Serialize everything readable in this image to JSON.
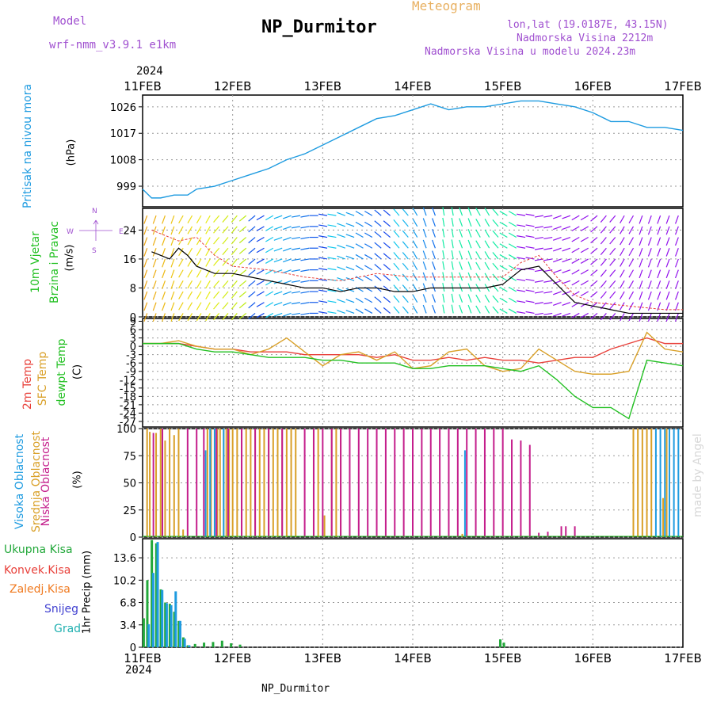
{
  "header": {
    "model_label": "Model",
    "model_name": "wrf-nmm_v3.9.1  e1km",
    "station": "NP_Durmitor",
    "meteogram_label": "Meteogram",
    "lonlat": "lon,lat (19.0187E, 43.15N)",
    "altitude": "Nadmorska Visina 2212m",
    "model_altitude": "Nadmorska Visina u modelu 2024.23m",
    "footer_station": "NP_Durmitor",
    "credit": "made by Angel",
    "year": "2024"
  },
  "colors": {
    "pressure": "#1e9be0",
    "temp2m": "#e8403a",
    "sfc": "#d9a028",
    "dewpt": "#22c022",
    "high_cloud": "#1e9be0",
    "mid_cloud": "#d9a028",
    "low_cloud": "#c41e8c",
    "precip_total": "#22a83a",
    "precip_conv": "#e8403a",
    "precip_frozen": "#f07a20",
    "snow": "#4040d0",
    "graupel": "#20b0b0",
    "wind_label": "#22c022",
    "wind_dir": "#a050d0"
  },
  "chart_data": [
    {
      "type": "line",
      "name": "pressure",
      "ylabel": [
        "Pritisak na nivou mora",
        "(hPa)"
      ],
      "x_range_days": [
        11,
        17
      ],
      "xticks": [
        "11FEB",
        "12FEB",
        "13FEB",
        "14FEB",
        "15FEB",
        "16FEB",
        "17FEB"
      ],
      "yticks": [
        999,
        1008,
        1017,
        1026
      ],
      "ylim": [
        992,
        1030
      ],
      "series": [
        {
          "x": [
            11.0,
            11.1,
            11.2,
            11.35,
            11.5,
            11.6,
            11.8,
            12.0,
            12.2,
            12.4,
            12.6,
            12.8,
            13.0,
            13.2,
            13.4,
            13.6,
            13.8,
            14.0,
            14.2,
            14.4,
            14.6,
            14.8,
            15.0,
            15.2,
            15.4,
            15.6,
            15.8,
            16.0,
            16.2,
            16.4,
            16.6,
            16.8,
            17.0
          ],
          "y": [
            998,
            995,
            995,
            996,
            996,
            998,
            999,
            1001,
            1003,
            1005,
            1008,
            1010,
            1013,
            1016,
            1019,
            1022,
            1023,
            1025,
            1027,
            1025,
            1026,
            1026,
            1027,
            1028,
            1028,
            1027,
            1026,
            1024,
            1021,
            1021,
            1019,
            1019,
            1018
          ]
        }
      ]
    },
    {
      "type": "line",
      "name": "wind",
      "ylabel": [
        "10m Vjetar",
        "Brzina i Pravac",
        "(m/s)"
      ],
      "direction_legend": {
        "north": "N",
        "west": "W",
        "east": "E",
        "south": "S"
      },
      "x_range_days": [
        11,
        17
      ],
      "yticks": [
        0,
        8,
        16,
        24
      ],
      "ylim": [
        0,
        30
      ],
      "series": [
        {
          "name": "speed",
          "x": [
            11.1,
            11.2,
            11.3,
            11.4,
            11.5,
            11.6,
            11.8,
            12.0,
            12.2,
            12.4,
            12.6,
            12.8,
            13.0,
            13.2,
            13.4,
            13.6,
            13.8,
            14.0,
            14.2,
            14.4,
            14.6,
            14.8,
            15.0,
            15.2,
            15.4,
            15.6,
            15.8,
            16.0,
            16.2,
            16.4,
            16.6,
            16.8,
            17.0
          ],
          "y": [
            18,
            17,
            16,
            19,
            17,
            14,
            12,
            12,
            11,
            10,
            9,
            8,
            8,
            7,
            8,
            8,
            7,
            7,
            8,
            8,
            8,
            8,
            9,
            13,
            14,
            9,
            4,
            3,
            2,
            1,
            1,
            1,
            1
          ]
        }
      ],
      "gust": {
        "x": [
          11.1,
          11.2,
          11.4,
          11.6,
          11.8,
          12.0,
          12.4,
          12.8,
          13.2,
          13.6,
          14.0,
          14.4,
          14.8,
          15.0,
          15.2,
          15.4,
          15.6,
          15.8,
          16.0,
          16.4,
          16.8,
          17.0
        ],
        "y": [
          24,
          23,
          21,
          22,
          17,
          14,
          13,
          11,
          10,
          12,
          11,
          11,
          11,
          11,
          15,
          17,
          11,
          6,
          4,
          3,
          2,
          2
        ]
      },
      "direction_deg": [
        200,
        200,
        210,
        210,
        220,
        220,
        230,
        240,
        250,
        260,
        270,
        280,
        290,
        300,
        310,
        320,
        330,
        340,
        350,
        340,
        330,
        320,
        300,
        280,
        260,
        250,
        240,
        230,
        220,
        210,
        200,
        200,
        200
      ]
    },
    {
      "type": "line",
      "name": "temperature",
      "ylabel": [
        "2m Temp",
        "SFC Temp",
        "dewpt Temp",
        "(C)"
      ],
      "x_range_days": [
        11,
        17
      ],
      "yticks": [
        9,
        6,
        3,
        0,
        -3,
        -6,
        -9,
        -12,
        -15,
        -18,
        -21,
        -24,
        -27
      ],
      "ylim": [
        -29,
        10
      ],
      "series": [
        {
          "name": "2m Temp",
          "x": [
            11.0,
            11.2,
            11.4,
            11.6,
            11.8,
            12.0,
            12.2,
            12.4,
            12.6,
            12.8,
            13.0,
            13.2,
            13.4,
            13.6,
            13.8,
            14.0,
            14.2,
            14.4,
            14.6,
            14.8,
            15.0,
            15.2,
            15.4,
            15.6,
            15.8,
            16.0,
            16.2,
            16.4,
            16.6,
            16.8,
            17.0
          ],
          "y": [
            1,
            1,
            1,
            0,
            -1,
            -1,
            -2,
            -2,
            -2,
            -3,
            -3,
            -3,
            -3,
            -4,
            -3,
            -5,
            -5,
            -4,
            -5,
            -4,
            -5,
            -5,
            -6,
            -5,
            -4,
            -4,
            -1,
            1,
            3,
            1,
            1
          ]
        },
        {
          "name": "SFC Temp",
          "x": [
            11.0,
            11.2,
            11.4,
            11.6,
            11.8,
            12.0,
            12.2,
            12.4,
            12.6,
            12.8,
            13.0,
            13.2,
            13.4,
            13.6,
            13.8,
            14.0,
            14.2,
            14.4,
            14.6,
            14.8,
            15.0,
            15.2,
            15.4,
            15.6,
            15.8,
            16.0,
            16.2,
            16.4,
            16.6,
            16.8,
            17.0
          ],
          "y": [
            1,
            1,
            2,
            0,
            -1,
            -1,
            -3,
            -1,
            3,
            -2,
            -7,
            -3,
            -2,
            -5,
            -2,
            -8,
            -7,
            -2,
            -1,
            -7,
            -9,
            -8,
            -1,
            -5,
            -9,
            -10,
            -10,
            -9,
            5,
            -1,
            -2
          ]
        },
        {
          "name": "dewpt Temp",
          "x": [
            11.0,
            11.2,
            11.4,
            11.6,
            11.8,
            12.0,
            12.2,
            12.4,
            12.6,
            12.8,
            13.0,
            13.2,
            13.4,
            13.6,
            13.8,
            14.0,
            14.2,
            14.4,
            14.6,
            14.8,
            15.0,
            15.2,
            15.4,
            15.6,
            15.8,
            16.0,
            16.2,
            16.4,
            16.6,
            16.8,
            17.0
          ],
          "y": [
            1,
            1,
            1,
            -1,
            -2,
            -2,
            -3,
            -4,
            -4,
            -4,
            -5,
            -5,
            -6,
            -6,
            -6,
            -8,
            -8,
            -7,
            -7,
            -7,
            -8,
            -9,
            -7,
            -12,
            -18,
            -22,
            -22,
            -26,
            -5,
            -6,
            -7
          ]
        }
      ]
    },
    {
      "type": "bar",
      "name": "clouds",
      "ylabel": [
        "Visoka Oblacnost",
        "Srednja Oblacnost",
        "Niska Oblacnost",
        "(%)"
      ],
      "x_range_days": [
        11,
        17
      ],
      "yticks": [
        0,
        25,
        50,
        75,
        100
      ],
      "ylim": [
        0,
        100
      ],
      "series": [
        {
          "name": "Srednja Oblacnost",
          "x": [
            11.05,
            11.08,
            11.15,
            11.2,
            11.25,
            11.3,
            11.35,
            11.4,
            11.45,
            11.72,
            11.76,
            11.8,
            11.83,
            11.86,
            11.9,
            11.93,
            11.96,
            12.0,
            12.05,
            12.1,
            12.15,
            12.2,
            12.25,
            12.3,
            12.35,
            12.4,
            12.45,
            12.5,
            12.55,
            12.6,
            12.65,
            12.7,
            12.9,
            12.95,
            13.02,
            13.1,
            13.15,
            13.2,
            14.55,
            16.45,
            16.5,
            16.55,
            16.6,
            16.65,
            16.75,
            16.78,
            16.82
          ],
          "y": [
            100,
            97,
            96,
            100,
            89,
            100,
            94,
            100,
            7,
            100,
            100,
            100,
            100,
            100,
            100,
            100,
            100,
            100,
            100,
            100,
            100,
            100,
            100,
            100,
            100,
            100,
            100,
            100,
            100,
            100,
            100,
            100,
            100,
            100,
            20,
            100,
            100,
            100,
            3,
            100,
            100,
            100,
            100,
            100,
            35,
            36,
            100
          ]
        },
        {
          "name": "Visoka Oblacnost",
          "x": [
            11.7,
            11.75,
            11.8,
            11.9,
            14.58,
            16.7,
            16.75,
            16.8,
            16.85,
            16.9,
            16.95
          ],
          "y": [
            80,
            100,
            100,
            100,
            80,
            100,
            100,
            100,
            100,
            100,
            100
          ]
        },
        {
          "name": "Niska Oblacnost",
          "x": [
            11.12,
            11.22,
            11.5,
            11.6,
            11.68,
            11.82,
            11.95,
            12.1,
            12.25,
            12.4,
            12.55,
            12.8,
            12.9,
            13.0,
            13.1,
            13.2,
            13.3,
            13.4,
            13.5,
            13.6,
            13.7,
            13.8,
            13.9,
            14.0,
            14.1,
            14.2,
            14.3,
            14.4,
            14.5,
            14.6,
            14.7,
            14.8,
            14.9,
            15.0,
            15.1,
            15.2,
            15.3,
            15.4,
            15.5,
            15.65,
            15.7,
            15.8
          ],
          "y": [
            96,
            100,
            100,
            100,
            100,
            100,
            100,
            100,
            100,
            100,
            100,
            100,
            100,
            100,
            100,
            100,
            100,
            100,
            100,
            100,
            100,
            100,
            100,
            100,
            100,
            100,
            100,
            100,
            100,
            100,
            100,
            100,
            100,
            100,
            90,
            89,
            85,
            4,
            5,
            10,
            10,
            10
          ]
        }
      ]
    },
    {
      "type": "bar",
      "name": "precipitation",
      "ylabel": [
        "1hr Precip (mm)"
      ],
      "legend": [
        "Ukupna Kisa",
        "Konvek.Kisa",
        "Zaledj.Kisa",
        "Snijeg",
        "Grad"
      ],
      "x_range_days": [
        11,
        17
      ],
      "xticks": [
        "11FEB",
        "12FEB",
        "13FEB",
        "14FEB",
        "15FEB",
        "16FEB",
        "17FEB"
      ],
      "yticks": [
        0,
        3.4,
        6.8,
        10.2,
        13.6
      ],
      "ylim": [
        0,
        16.5
      ],
      "series": [
        {
          "name": "Ukupna Kisa",
          "x": [
            11.03,
            11.07,
            11.12,
            11.17,
            11.22,
            11.27,
            11.32,
            11.37,
            11.42,
            11.47,
            11.52,
            11.6,
            11.7,
            11.8,
            11.9,
            12.0,
            12.1,
            14.99,
            15.03
          ],
          "y": [
            4.4,
            10.2,
            16.3,
            15.8,
            8.8,
            6.8,
            6.6,
            5.4,
            4.0,
            1.5,
            0.3,
            0.5,
            0.7,
            0.8,
            1.0,
            0.6,
            0.4,
            1.2,
            0.7
          ]
        },
        {
          "name": "Snijeg",
          "x": [
            11.05,
            11.1,
            11.15,
            11.2,
            11.25,
            11.3,
            11.35,
            11.4,
            11.45,
            11.5
          ],
          "y": [
            3.5,
            11.3,
            16.0,
            8.7,
            6.7,
            6.4,
            8.5,
            4.0,
            1.3,
            0.3
          ]
        }
      ]
    }
  ]
}
